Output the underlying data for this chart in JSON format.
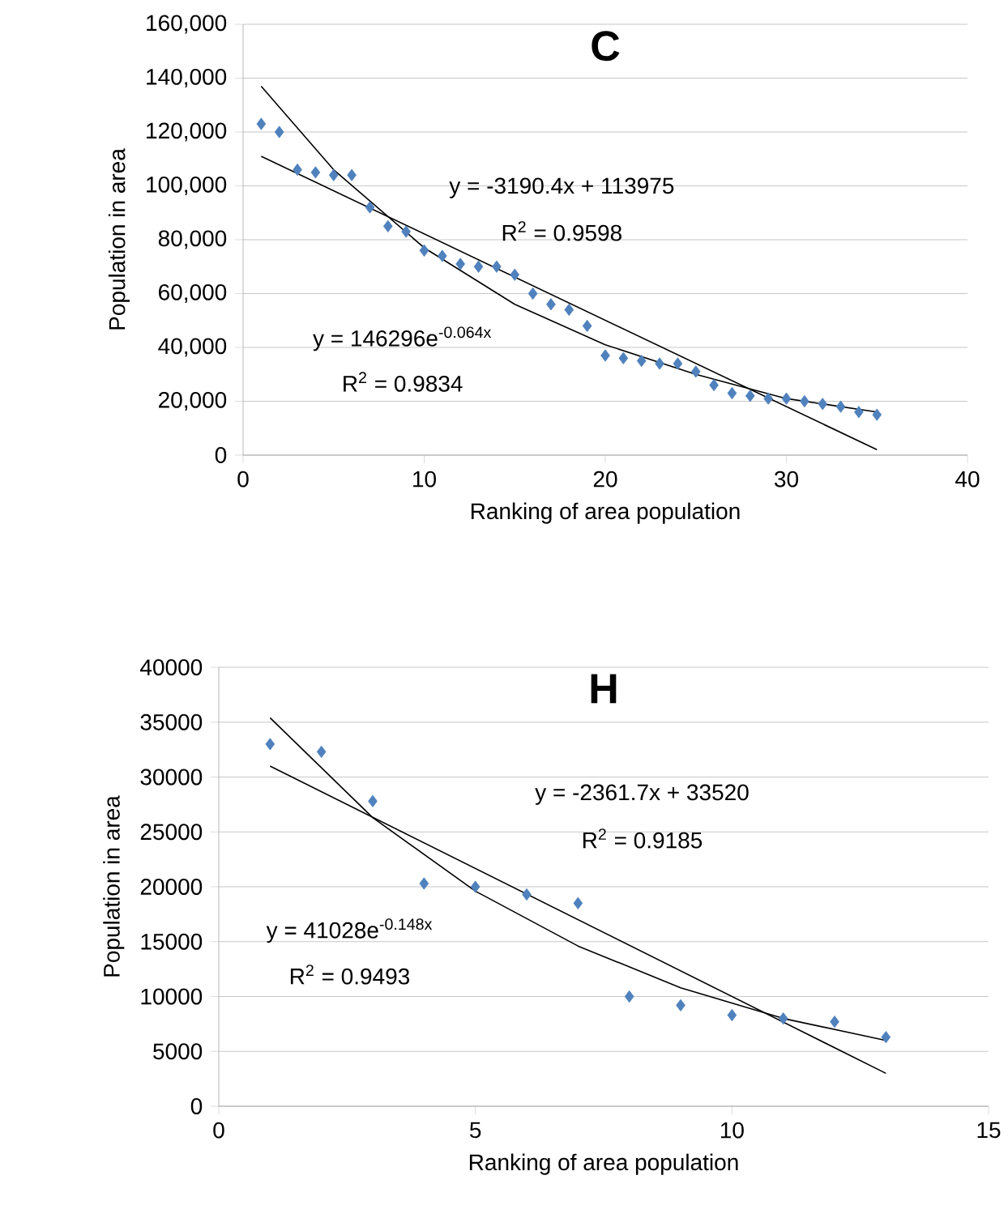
{
  "chart_data": [
    {
      "type": "scatter",
      "title": "C",
      "xlabel": "Ranking of area population",
      "ylabel": "Population in area",
      "xlim": [
        0,
        40
      ],
      "xticks": [
        0,
        10,
        20,
        30,
        40
      ],
      "ylim": [
        0,
        160000
      ],
      "yticks": [
        {
          "value": 0,
          "label": "0"
        },
        {
          "value": 20000,
          "label": "20,000"
        },
        {
          "value": 40000,
          "label": "40,000"
        },
        {
          "value": 60000,
          "label": "60,000"
        },
        {
          "value": 80000,
          "label": "80,000"
        },
        {
          "value": 100000,
          "label": "100,000"
        },
        {
          "value": 120000,
          "label": "120,000"
        },
        {
          "value": 140000,
          "label": "140,000"
        },
        {
          "value": 160000,
          "label": "160,000"
        }
      ],
      "grid": "y",
      "marker": "diamond",
      "series": [
        {
          "color": "#4f81bd",
          "x": [
            1,
            2,
            3,
            4,
            5,
            6,
            7,
            8,
            9,
            10,
            11,
            12,
            13,
            14,
            15,
            16,
            17,
            18,
            19,
            20,
            21,
            22,
            23,
            24,
            25,
            26,
            27,
            28,
            29,
            30,
            31,
            32,
            33,
            34,
            35
          ],
          "values": [
            123000,
            120000,
            106000,
            105000,
            104000,
            104000,
            92000,
            85000,
            83000,
            76000,
            74000,
            71000,
            70000,
            70000,
            67000,
            60000,
            56000,
            54000,
            48000,
            37000,
            36000,
            35000,
            34000,
            34000,
            31000,
            26000,
            23000,
            22000,
            21000,
            21000,
            20000,
            19000,
            18000,
            16000,
            15000
          ]
        },
        {
          "type": "line",
          "color": "#000000",
          "marker": "none",
          "x": [
            1,
            35
          ],
          "values": [
            111000,
            2000
          ]
        },
        {
          "type": "line",
          "color": "#000000",
          "marker": "none",
          "x": [
            1,
            5,
            10,
            15,
            20,
            25,
            30,
            35
          ],
          "values": [
            137000,
            106000,
            77000,
            56000,
            41000,
            30000,
            21000,
            16000
          ]
        }
      ],
      "annotations": [
        "y = -3190.4x + 113975",
        "R$^{2}$ = 0.9598",
        "y = 146296e$^{-0.064x}$",
        "R$^{2}$ = 0.9834"
      ]
    },
    {
      "type": "scatter",
      "title": "H",
      "xlabel": "Ranking of area population",
      "ylabel": "Population in area",
      "xlim": [
        0,
        15
      ],
      "xticks": [
        0,
        5,
        10,
        15
      ],
      "ylim": [
        0,
        40000
      ],
      "yticks": [
        0,
        5000,
        10000,
        15000,
        20000,
        25000,
        30000,
        35000,
        40000
      ],
      "grid": "y",
      "marker": "diamond",
      "series": [
        {
          "color": "#4f81bd",
          "x": [
            1,
            2,
            3,
            4,
            5,
            6,
            7,
            8,
            9,
            10,
            11,
            12,
            13
          ],
          "values": [
            33000,
            32300,
            27800,
            20300,
            20000,
            19300,
            18500,
            10000,
            9200,
            8300,
            8000,
            7700,
            6300
          ]
        },
        {
          "type": "line",
          "color": "#000000",
          "marker": "none",
          "x": [
            1,
            13
          ],
          "values": [
            31000,
            3000
          ]
        },
        {
          "type": "line",
          "color": "#000000",
          "marker": "none",
          "x": [
            1,
            3,
            5,
            7,
            9,
            11,
            13
          ],
          "values": [
            35400,
            26300,
            19600,
            14600,
            10800,
            8000,
            6000
          ]
        }
      ],
      "annotations": [
        "y = -2361.7x + 33520",
        "R$^{2}$ = 0.9185",
        "y = 41028e$^{-0.148x}$",
        "R$^{2}$ = 0.9493"
      ]
    }
  ]
}
